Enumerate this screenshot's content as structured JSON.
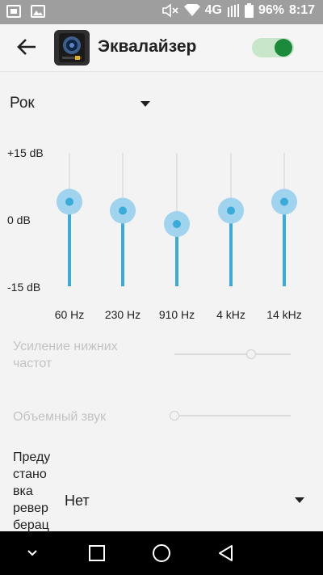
{
  "status_bar": {
    "network": "4G",
    "battery": "96%",
    "time": "8:17",
    "icons": [
      "gallery-icon",
      "image-icon",
      "mute-icon",
      "wifi-icon",
      "signal-icon",
      "battery-icon"
    ]
  },
  "app_bar": {
    "title": "Эквалайзер",
    "enabled": true,
    "accent": "#1b8a3a"
  },
  "preset": {
    "value": "Рок"
  },
  "equalizer": {
    "db_max": "+15 dB",
    "db_mid": "0 dB",
    "db_min": "-15 dB",
    "accent": "#3aaad8",
    "bands": [
      {
        "label": "60 Hz",
        "level_db": 4
      },
      {
        "label": "230 Hz",
        "level_db": 2
      },
      {
        "label": "910 Hz",
        "level_db": -1
      },
      {
        "label": "4 kHz",
        "level_db": 2
      },
      {
        "label": "14 kHz",
        "level_db": 4
      }
    ]
  },
  "bass_boost": {
    "label": "Усиление нижних частот",
    "level": 0.66,
    "enabled": false
  },
  "surround": {
    "label": "Объемный звук",
    "level": 0.0,
    "enabled": false
  },
  "reverb": {
    "label": "Преду стано вка ревер берац",
    "value": "Нет"
  }
}
